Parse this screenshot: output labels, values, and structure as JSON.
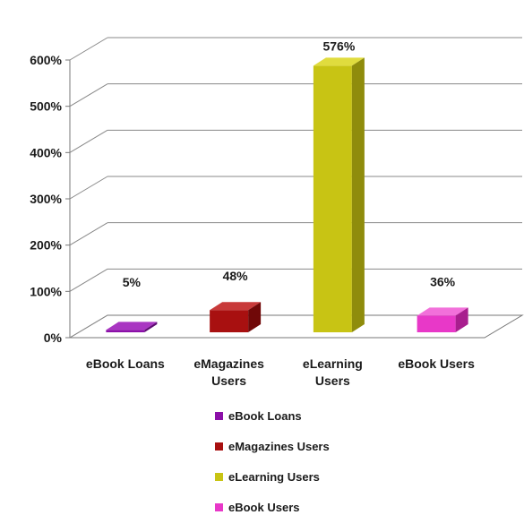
{
  "chart_data": {
    "type": "bar",
    "categories": [
      [
        "eBook Loans"
      ],
      [
        "eMagazines",
        "Users"
      ],
      [
        "eLearning",
        "Users"
      ],
      [
        "eBook Users"
      ]
    ],
    "values": [
      5,
      48,
      576,
      36
    ],
    "data_labels": [
      "5%",
      "48%",
      "576%",
      "36%"
    ],
    "ylim": [
      0,
      600
    ],
    "yticks": [
      {
        "value": 0,
        "label": "0%"
      },
      {
        "value": 100,
        "label": "100%"
      },
      {
        "value": 200,
        "label": "200%"
      },
      {
        "value": 300,
        "label": "300%"
      },
      {
        "value": 400,
        "label": "400%"
      },
      {
        "value": 500,
        "label": "500%"
      },
      {
        "value": 600,
        "label": "600%"
      }
    ],
    "grid": true,
    "three_d": true,
    "legend_position": "bottom",
    "legend": [
      {
        "label": "eBook Loans",
        "color": "#8B10A8"
      },
      {
        "label": "eMagazines  Users",
        "color": "#A81010"
      },
      {
        "label": "eLearning Users",
        "color": "#C8C414"
      },
      {
        "label": "eBook Users",
        "color": "#E838C8"
      }
    ],
    "colors": [
      {
        "front": "#8B10A8",
        "top": "#A936C2",
        "side": "#5E0A73"
      },
      {
        "front": "#A81010",
        "top": "#C83A3A",
        "side": "#700808"
      },
      {
        "front": "#C8C414",
        "top": "#E0DC3E",
        "side": "#8F8C0C"
      },
      {
        "front": "#E838C8",
        "top": "#F270DA",
        "side": "#A81E8E"
      }
    ]
  }
}
